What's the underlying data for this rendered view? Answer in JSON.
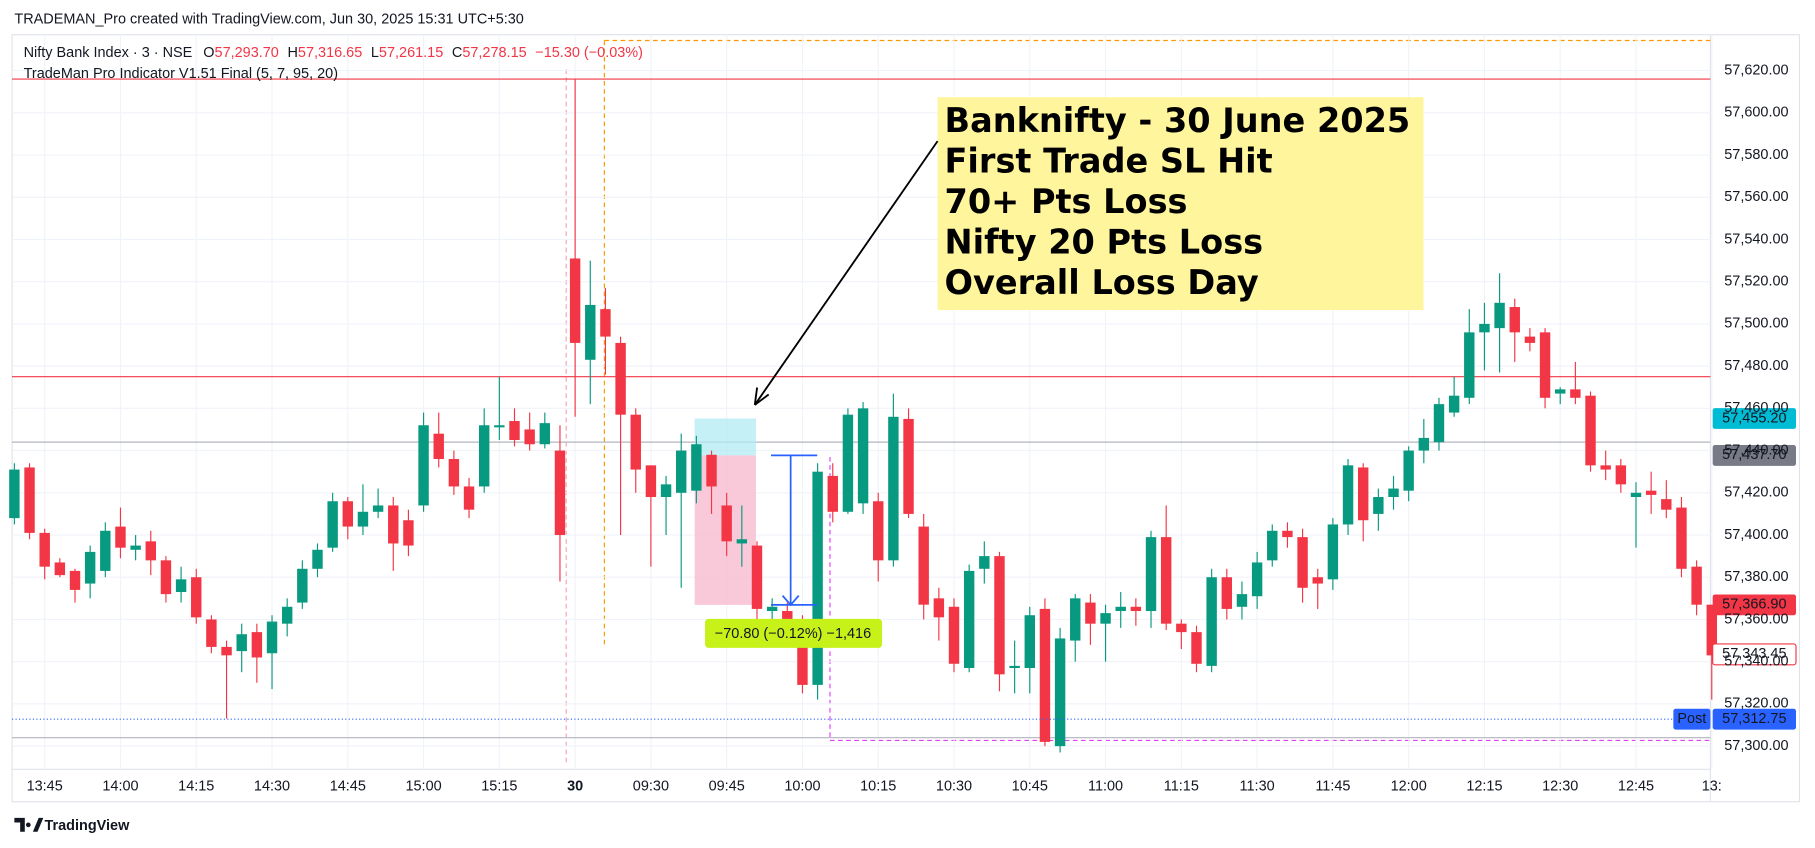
{
  "chart_data": {
    "type": "candlestick",
    "credit": "TRADEMAN_Pro created with TradingView.com, Jun 30, 2025 15:31 UTC+5:30",
    "symbol": "Nifty Bank Index · 3 · NSE",
    "fields": [
      {
        "key": "O",
        "text": "57,293.70"
      },
      {
        "key": "H",
        "text": "57,316.65"
      },
      {
        "key": "L",
        "text": "57,261.15"
      },
      {
        "key": "C",
        "text": "57,278.15"
      }
    ],
    "change": "−15.30 (−0.03%)",
    "indicator": "TradeMan Pro Indicator V1.51 Final (5, 7, 95, 20)",
    "annotation": [
      "Banknifty - 30 June 2025",
      "First Trade SL Hit",
      "70+ Pts Loss",
      "Nifty 20 Pts Loss",
      "Overall Loss Day"
    ],
    "brand": "TradingView",
    "up_color": "#089981",
    "down_color": "#f23645",
    "ylim": [
      57289,
      57637
    ],
    "yticks": [
      {
        "value": 57300,
        "label": "57,300.00"
      },
      {
        "value": 57320,
        "label": "57,320.00"
      },
      {
        "value": 57340,
        "label": "57,340.00"
      },
      {
        "value": 57360,
        "label": "57,360.00"
      },
      {
        "value": 57380,
        "label": "57,380.00"
      },
      {
        "value": 57400,
        "label": "57,400.00"
      },
      {
        "value": 57420,
        "label": "57,420.00"
      },
      {
        "value": 57440,
        "label": "57,440.00"
      },
      {
        "value": 57460,
        "label": "57,460.00"
      },
      {
        "value": 57480,
        "label": "57,480.00"
      },
      {
        "value": 57500,
        "label": "57,500.00"
      },
      {
        "value": 57520,
        "label": "57,520.00"
      },
      {
        "value": 57540,
        "label": "57,540.00"
      },
      {
        "value": 57560,
        "label": "57,560.00"
      },
      {
        "value": 57580,
        "label": "57,580.00"
      },
      {
        "value": 57600,
        "label": "57,600.00"
      },
      {
        "value": 57620,
        "label": "57,620.00"
      }
    ],
    "categories": [
      null,
      null,
      "13:45",
      null,
      null,
      null,
      null,
      "14:00",
      null,
      null,
      null,
      null,
      "14:15",
      null,
      null,
      null,
      null,
      "14:30",
      null,
      null,
      null,
      null,
      "14:45",
      null,
      null,
      null,
      null,
      "15:00",
      null,
      null,
      null,
      null,
      "15:15",
      null,
      null,
      null,
      null,
      "30",
      null,
      null,
      null,
      null,
      "09:30",
      null,
      null,
      null,
      null,
      "09:45",
      null,
      null,
      null,
      null,
      "10:00",
      null,
      null,
      null,
      null,
      "10:15",
      null,
      null,
      null,
      null,
      "10:30",
      null,
      null,
      null,
      null,
      "10:45",
      null,
      null,
      null,
      null,
      "11:00",
      null,
      null,
      null,
      null,
      "11:15",
      null,
      null,
      null,
      null,
      "11:30",
      null,
      null,
      null,
      null,
      "11:45",
      null,
      null,
      null,
      null,
      "12:00",
      null,
      null,
      null,
      null,
      "12:15",
      null,
      null,
      null,
      null,
      "12:30",
      null,
      null,
      null,
      null,
      "12:45",
      null,
      null,
      null,
      null,
      "13:"
    ],
    "open": [
      57408,
      57432,
      57401,
      57387,
      57383,
      57377,
      57383,
      57404,
      57393,
      57397,
      57388,
      57373,
      57380,
      57360,
      57347,
      57345,
      57354,
      57344,
      57358,
      57368,
      57384,
      57394,
      57416,
      57404,
      57411,
      57414,
      57407,
      57414,
      57448,
      57436,
      57423,
      57423,
      57451,
      57454,
      57450,
      57443,
      57440,
      57531,
      57483,
      57507,
      57491,
      57457,
      57433,
      57418,
      57420,
      57421,
      57438,
      57414,
      57396,
      57395,
      57364,
      57364,
      57359,
      57329,
      57428,
      57411,
      57415,
      57416,
      57388,
      57455,
      57404,
      57370,
      57366,
      57337,
      57384,
      57390,
      57337,
      57337,
      57365,
      57300,
      57350,
      57368,
      57358,
      57364,
      57366,
      57364,
      57399,
      57358,
      57354,
      57338,
      57380,
      57366,
      57371,
      57388,
      57402,
      57399,
      57380,
      57379,
      57405,
      57432,
      57410,
      57418,
      57421,
      57440,
      57444,
      57458,
      57465,
      57496,
      57498,
      57508,
      57494,
      57496,
      57467,
      57469,
      57466,
      57433,
      57433,
      57418,
      57421,
      57417,
      57413,
      57385,
      57367
    ],
    "high": [
      57434,
      57434,
      57403,
      57389,
      57384,
      57395,
      57406,
      57413,
      57400,
      57402,
      57390,
      57385,
      57384,
      57362,
      57350,
      57358,
      57358,
      57362,
      57370,
      57388,
      57396,
      57420,
      57418,
      57424,
      57422,
      57418,
      57412,
      57458,
      57458,
      57440,
      57427,
      57460,
      57475,
      57460,
      57458,
      57458,
      57452,
      57616,
      57530,
      57517,
      57494,
      57460,
      57433,
      57428,
      57448,
      57447,
      57440,
      57420,
      57414,
      57397,
      57370,
      57368,
      57362,
      57434,
      57434,
      57460,
      57463,
      57420,
      57467,
      57460,
      57410,
      57375,
      57370,
      57386,
      57397,
      57392,
      57350,
      57366,
      57370,
      57356,
      57372,
      57372,
      57367,
      57373,
      57370,
      57402,
      57414,
      57360,
      57357,
      57384,
      57384,
      57378,
      57392,
      57405,
      57406,
      57403,
      57384,
      57408,
      57436,
      57434,
      57422,
      57428,
      57442,
      57455,
      57465,
      57475,
      57507,
      57510,
      57524,
      57512,
      57498,
      57498,
      57470,
      57482,
      57468,
      57440,
      57436,
      57425,
      57430,
      57426,
      57418,
      57388,
      57367
    ],
    "low": [
      57405,
      57398,
      57379,
      57380,
      57368,
      57370,
      57380,
      57389,
      57388,
      57381,
      57368,
      57368,
      57358,
      57344,
      57313,
      57335,
      57330,
      57327,
      57352,
      57365,
      57380,
      57392,
      57398,
      57400,
      57408,
      57383,
      57390,
      57411,
      57432,
      57419,
      57408,
      57420,
      57445,
      57442,
      57440,
      57441,
      57378,
      57456,
      57462,
      57476,
      57400,
      57420,
      57385,
      57400,
      57375,
      57415,
      57410,
      57390,
      57385,
      57355,
      57350,
      57355,
      57325,
      57322,
      57406,
      57410,
      57410,
      57378,
      57385,
      57408,
      57360,
      57350,
      57335,
      57335,
      57377,
      57326,
      57325,
      57325,
      57300,
      57297,
      57340,
      57348,
      57340,
      57356,
      57357,
      57356,
      57355,
      57346,
      57335,
      57335,
      57360,
      57360,
      57365,
      57385,
      57394,
      57368,
      57365,
      57374,
      57400,
      57397,
      57402,
      57412,
      57416,
      57434,
      57440,
      57456,
      57462,
      57478,
      57477,
      57482,
      57487,
      57460,
      57462,
      57462,
      57430,
      57426,
      57420,
      57394,
      57410,
      57408,
      57380,
      57362,
      57322
    ],
    "close": [
      57431,
      57401,
      57385,
      57381,
      57374,
      57392,
      57402,
      57394,
      57395,
      57388,
      57372,
      57379,
      57361,
      57347,
      57343,
      57353,
      57342,
      57359,
      57366,
      57384,
      57393,
      57416,
      57404,
      57411,
      57414,
      57396,
      57395,
      57452,
      57436,
      57423,
      57412,
      57452,
      57452,
      57445,
      57443,
      57453,
      57400,
      57491,
      57509,
      57494,
      57457,
      57431,
      57418,
      57424,
      57440,
      57443,
      57423,
      57397,
      57398,
      57365,
      57366,
      57358,
      57329,
      57430,
      57411,
      57457,
      57460,
      57388,
      57456,
      57410,
      57367,
      57361,
      57339,
      57383,
      57390,
      57334,
      57338,
      57362,
      57302,
      57351,
      57370,
      57358,
      57363,
      57366,
      57364,
      57399,
      57358,
      57354,
      57339,
      57380,
      57365,
      57372,
      57387,
      57402,
      57399,
      57375,
      57377,
      57405,
      57433,
      57407,
      57418,
      57422,
      57440,
      57446,
      57462,
      57466,
      57496,
      57500,
      57510,
      57496,
      57491,
      57465,
      57469,
      57465,
      57433,
      57431,
      57424,
      57420,
      57419,
      57412,
      57384,
      57367,
      57343
    ],
    "levels": [
      {
        "value": 57616,
        "color": "#f23645"
      },
      {
        "value": 57475,
        "color": "#f23645"
      },
      {
        "value": 57444,
        "color": "#b2b5be"
      },
      {
        "value": 57304,
        "color": "#b2b5be"
      }
    ],
    "position": {
      "target": 57455.2,
      "entry": 57437.7,
      "stop": 57366.9
    },
    "measure_label": "−70.80 (−0.12%) −1,416",
    "price_labels": [
      {
        "value": 57455.2,
        "label": "57,455.20",
        "color": "#00bcd4",
        "style": "fill"
      },
      {
        "value": 57437.7,
        "label": "57,437.70",
        "color": "#787b86",
        "style": "fill"
      },
      {
        "value": 57366.9,
        "label": "57,366.90",
        "color": "#f23645",
        "style": "fill"
      },
      {
        "value": 57343.45,
        "label": "57,343.45",
        "color": "#f23645",
        "style": "outline"
      },
      {
        "value": 57312.75,
        "label": "57,312.75",
        "color": "#2962ff",
        "style": "fill",
        "tag": "Post"
      }
    ]
  }
}
